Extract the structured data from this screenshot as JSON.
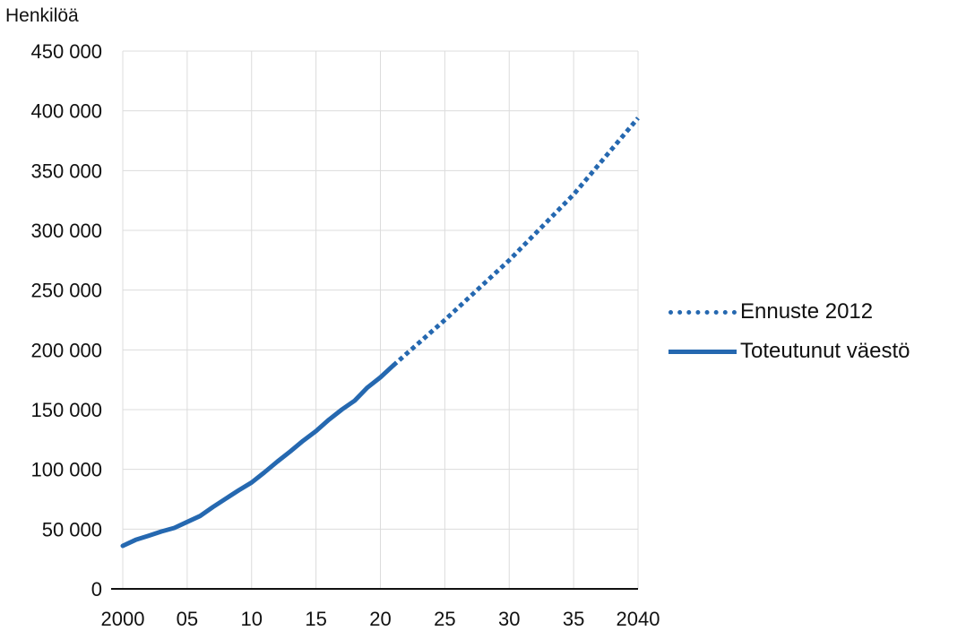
{
  "chart_data": {
    "type": "line",
    "unit_label": "Henkilöä",
    "x_ticks": [
      {
        "value": 2000,
        "label": "2000"
      },
      {
        "value": 2005,
        "label": "05"
      },
      {
        "value": 2010,
        "label": "10"
      },
      {
        "value": 2015,
        "label": "15"
      },
      {
        "value": 2020,
        "label": "20"
      },
      {
        "value": 2025,
        "label": "25"
      },
      {
        "value": 2030,
        "label": "30"
      },
      {
        "value": 2035,
        "label": "35"
      },
      {
        "value": 2040,
        "label": "2040"
      }
    ],
    "y_ticks": [
      {
        "value": 0,
        "label": "0"
      },
      {
        "value": 50000,
        "label": "50 000"
      },
      {
        "value": 100000,
        "label": "100 000"
      },
      {
        "value": 150000,
        "label": "150 000"
      },
      {
        "value": 200000,
        "label": "200 000"
      },
      {
        "value": 250000,
        "label": "250 000"
      },
      {
        "value": 300000,
        "label": "300 000"
      },
      {
        "value": 350000,
        "label": "350 000"
      },
      {
        "value": 400000,
        "label": "400 000"
      },
      {
        "value": 450000,
        "label": "450 000"
      }
    ],
    "xlim": [
      2000,
      2040
    ],
    "ylim": [
      0,
      450000
    ],
    "grid": true,
    "legend_position": "right",
    "series": [
      {
        "name": "Ennuste 2012",
        "style": "dotted",
        "color": "#2568b0",
        "x": [
          2021,
          2025,
          2030,
          2035,
          2040
        ],
        "y": [
          187000,
          225000,
          275000,
          330000,
          394000
        ]
      },
      {
        "name": "Toteutunut väestö",
        "style": "solid",
        "color": "#2568b0",
        "x": [
          2000,
          2001,
          2002,
          2003,
          2004,
          2005,
          2006,
          2007,
          2008,
          2009,
          2010,
          2011,
          2012,
          2013,
          2014,
          2015,
          2016,
          2017,
          2018,
          2019,
          2020,
          2021
        ],
        "y": [
          36000,
          41000,
          44500,
          48000,
          51000,
          56000,
          61000,
          68500,
          75500,
          82500,
          89000,
          97500,
          106500,
          115000,
          124000,
          132000,
          141500,
          150000,
          157500,
          168500,
          177000,
          187000
        ]
      }
    ]
  }
}
